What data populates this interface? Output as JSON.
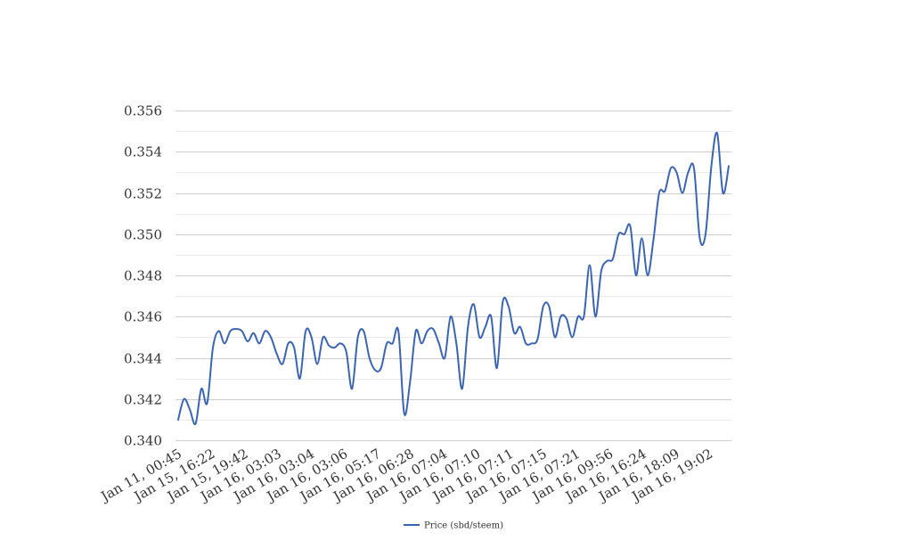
{
  "chart_data": {
    "type": "line",
    "title": "",
    "xlabel": "",
    "ylabel": "",
    "ylim": [
      0.34,
      0.356
    ],
    "y_ticks": [
      0.34,
      0.342,
      0.344,
      0.346,
      0.348,
      0.35,
      0.352,
      0.354,
      0.356
    ],
    "y_tick_labels": [
      "0.340",
      "0.342",
      "0.344",
      "0.346",
      "0.348",
      "0.350",
      "0.352",
      "0.354",
      "0.356"
    ],
    "x_tick_labels": [
      "Jan 11, 00:45",
      "Jan 15, 16:22",
      "Jan 15, 19:42",
      "Jan 16, 03:03",
      "Jan 16, 03:04",
      "Jan 16, 03:06",
      "Jan 16, 05:17",
      "Jan 16, 06:28",
      "Jan 16, 07:04",
      "Jan 16, 07:10",
      "Jan 16, 07:11",
      "Jan 16, 07:15",
      "Jan 16, 07:21",
      "Jan 16, 09:56",
      "Jan 16, 16:24",
      "Jan 16, 18:09",
      "Jan 16, 19:02"
    ],
    "grid": true,
    "legend_position": "bottom",
    "series": [
      {
        "name": "Price (sbd/steem)",
        "color": "#3b64b3",
        "values": [
          0.341,
          0.342,
          0.3415,
          0.3408,
          0.3425,
          0.3418,
          0.3445,
          0.3453,
          0.3447,
          0.3453,
          0.3454,
          0.3453,
          0.3448,
          0.3452,
          0.3447,
          0.3453,
          0.345,
          0.3442,
          0.3437,
          0.3447,
          0.3445,
          0.343,
          0.3453,
          0.345,
          0.3437,
          0.345,
          0.3446,
          0.3445,
          0.3447,
          0.3443,
          0.3425,
          0.345,
          0.3453,
          0.344,
          0.3434,
          0.3435,
          0.3447,
          0.3447,
          0.3453,
          0.3413,
          0.3428,
          0.3453,
          0.3447,
          0.3453,
          0.3454,
          0.3447,
          0.344,
          0.346,
          0.3447,
          0.3425,
          0.3455,
          0.3466,
          0.345,
          0.3455,
          0.346,
          0.3435,
          0.3467,
          0.3465,
          0.3452,
          0.3455,
          0.3447,
          0.3447,
          0.3449,
          0.3465,
          0.3465,
          0.345,
          0.346,
          0.3459,
          0.345,
          0.346,
          0.346,
          0.3485,
          0.346,
          0.3482,
          0.3487,
          0.3488,
          0.35,
          0.35,
          0.3504,
          0.348,
          0.3498,
          0.348,
          0.3497,
          0.352,
          0.3521,
          0.3532,
          0.353,
          0.352,
          0.353,
          0.3532,
          0.3498,
          0.35,
          0.3533,
          0.3549,
          0.352,
          0.3533
        ]
      }
    ]
  }
}
